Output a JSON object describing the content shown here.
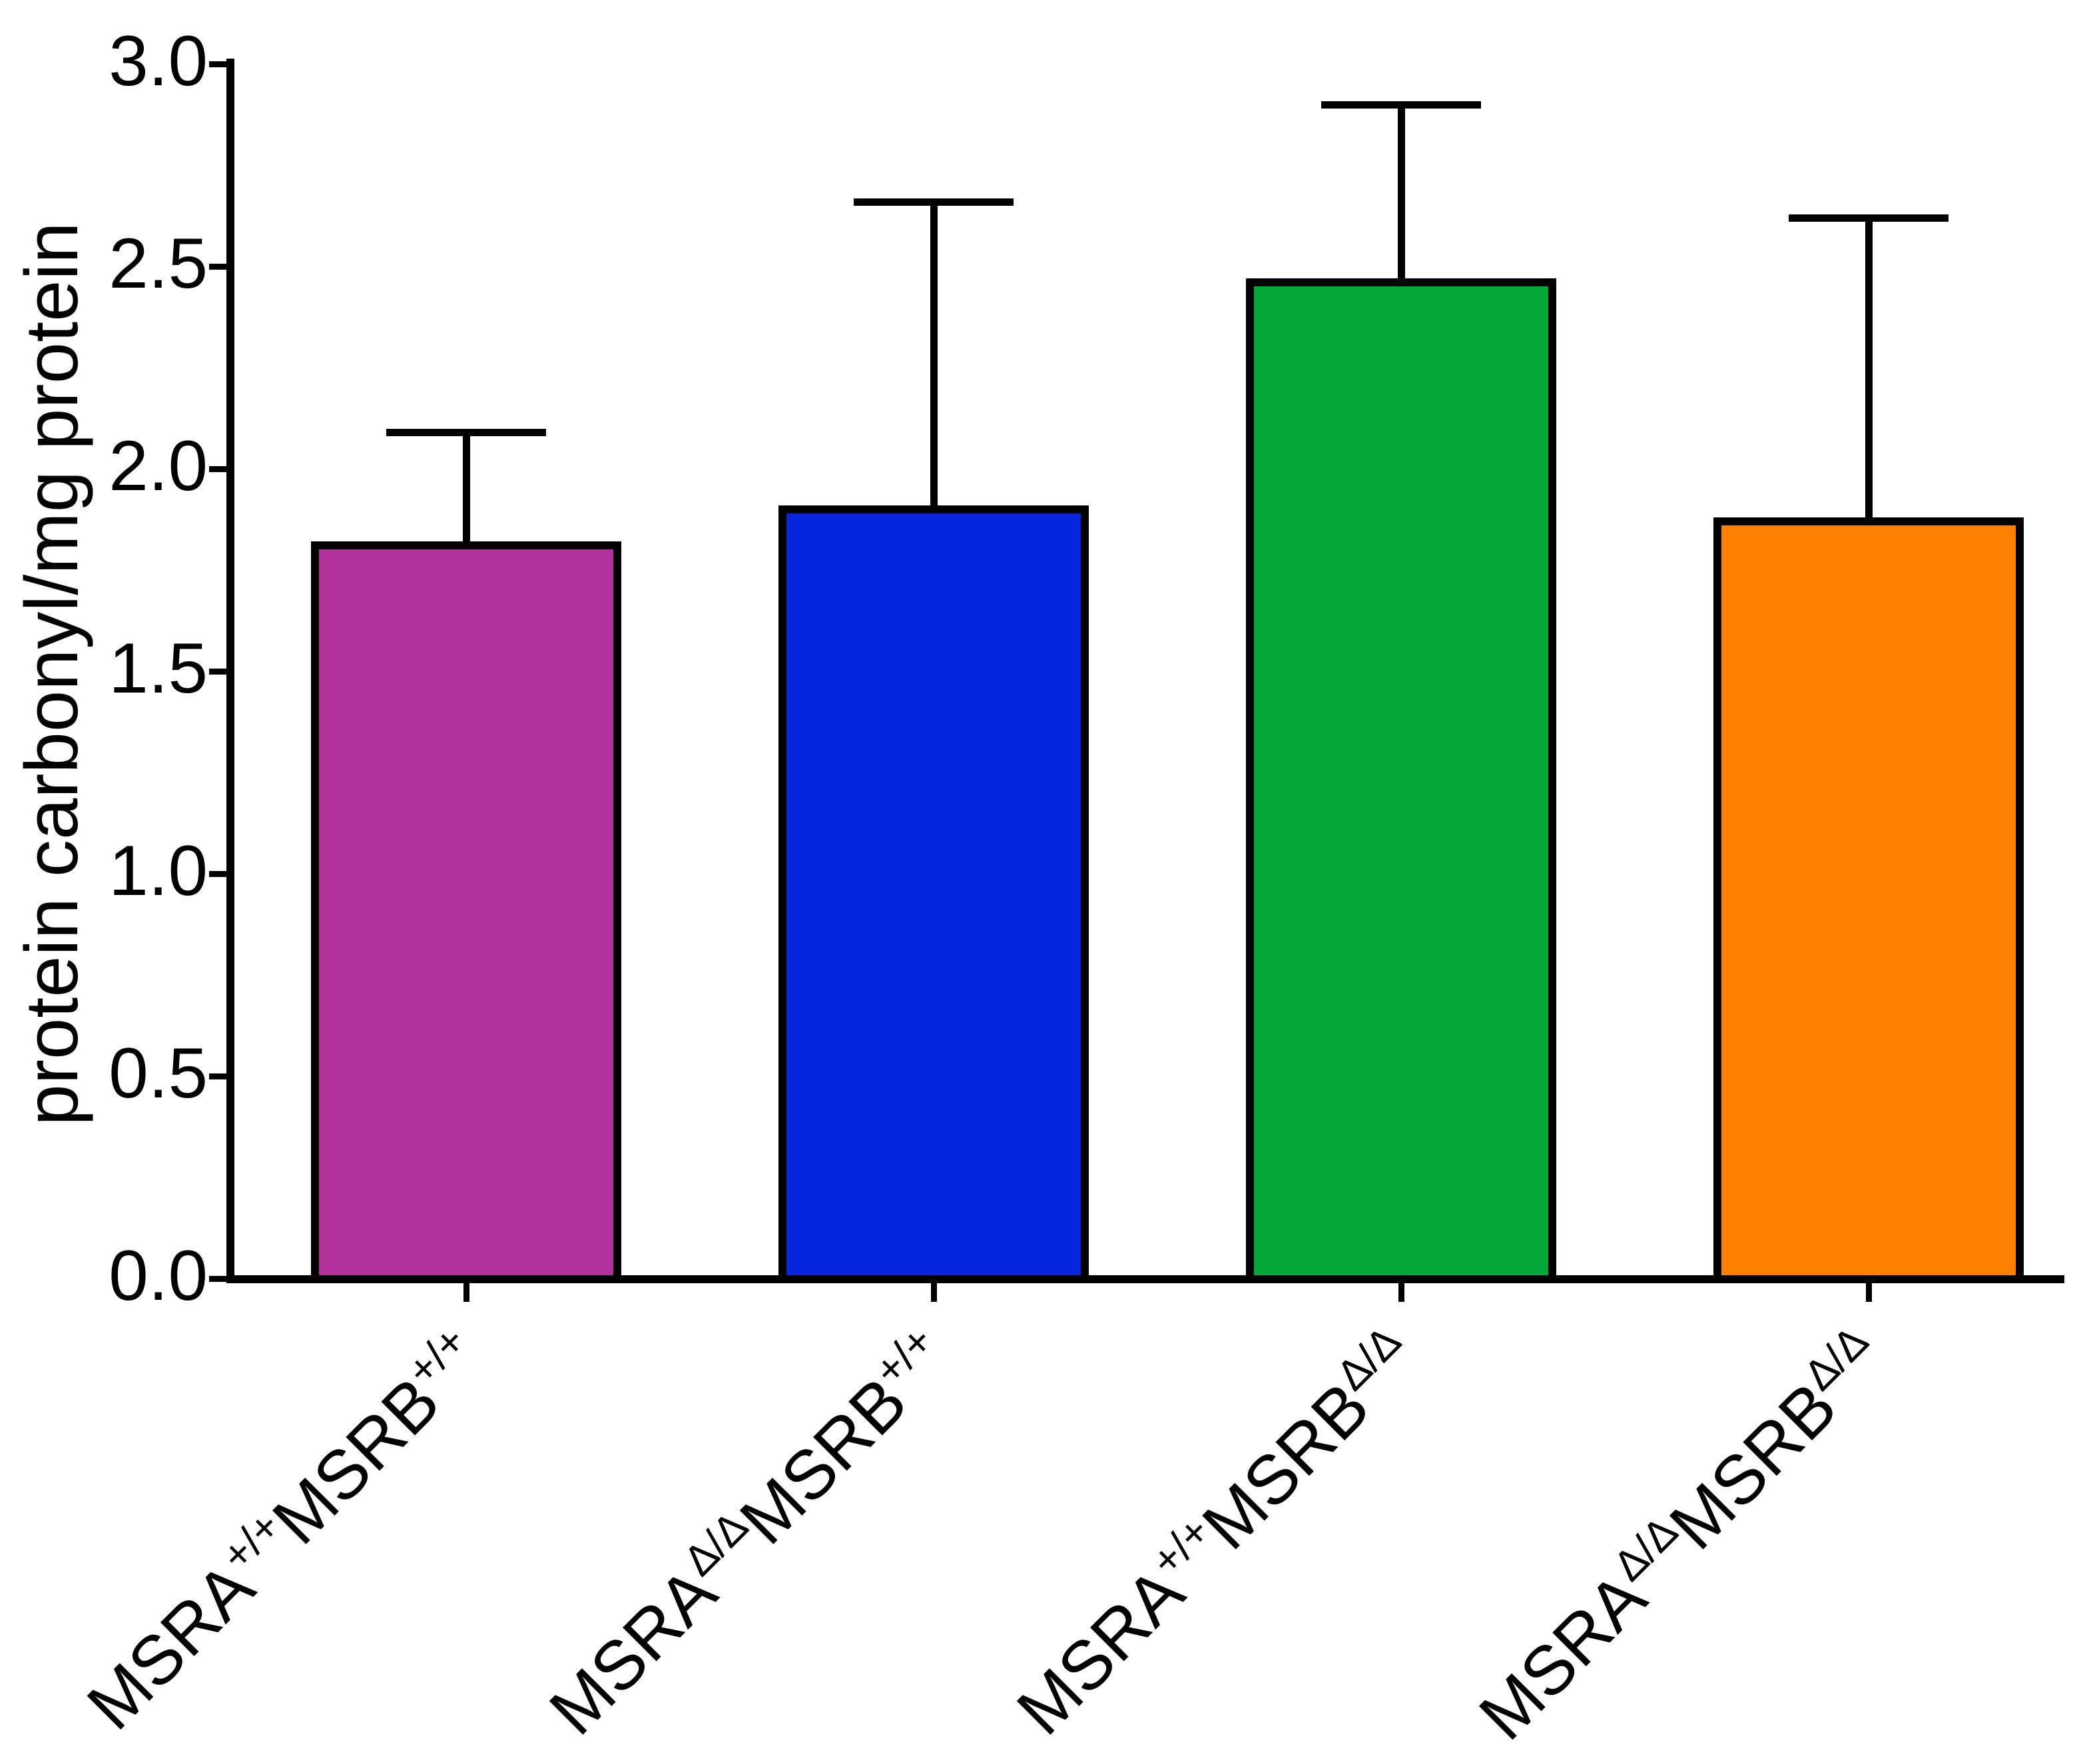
{
  "figure": {
    "background": "#FFFFFF",
    "axis_color": "#000000"
  },
  "chart_data": {
    "type": "bar",
    "title": "",
    "xlabel": "",
    "ylabel": "protein carbonyl/mg protein",
    "ylim": [
      0.0,
      3.0
    ],
    "ytick_step": 0.5,
    "yticks": [
      3.0,
      2.5,
      2.0,
      1.5,
      1.0,
      0.5,
      0.0
    ],
    "ytick_labels": [
      "3.0",
      "2.5",
      "2.0",
      "1.5",
      "1.0",
      "0.5",
      "0.0"
    ],
    "grid": false,
    "legend": null,
    "categories": [
      "MSRA+/+MSRB+/+",
      "MSRAΔ/ΔMSRB+/+",
      "MSRA+/+MSRBΔ/Δ",
      "MSRAΔ/ΔMSRBΔ/Δ"
    ],
    "categories_rich": [
      {
        "base1": "MSRA",
        "sup1": "+/+",
        "base2": "MSRB",
        "sup2": "+/+"
      },
      {
        "base1": "MSRA",
        "sup1": "Δ/Δ",
        "base2": "MSRB",
        "sup2": "+/+"
      },
      {
        "base1": "MSRA",
        "sup1": "+/+",
        "base2": "MSRB",
        "sup2": "Δ/Δ"
      },
      {
        "base1": "MSRA",
        "sup1": "Δ/Δ",
        "base2": "MSRB",
        "sup2": "Δ/Δ"
      }
    ],
    "series": [
      {
        "name": "protein carbonyl",
        "values": [
          1.82,
          1.91,
          2.47,
          1.88
        ],
        "errors_upper": [
          0.27,
          0.75,
          0.43,
          0.74
        ]
      }
    ],
    "error_tops": [
      2.09,
      2.66,
      2.9,
      2.62
    ],
    "bar_colors": [
      "#B23099",
      "#0526DC",
      "#04A737",
      "#FF7F02"
    ],
    "bar_outline_color": "#000000",
    "error_color": "#000000"
  }
}
